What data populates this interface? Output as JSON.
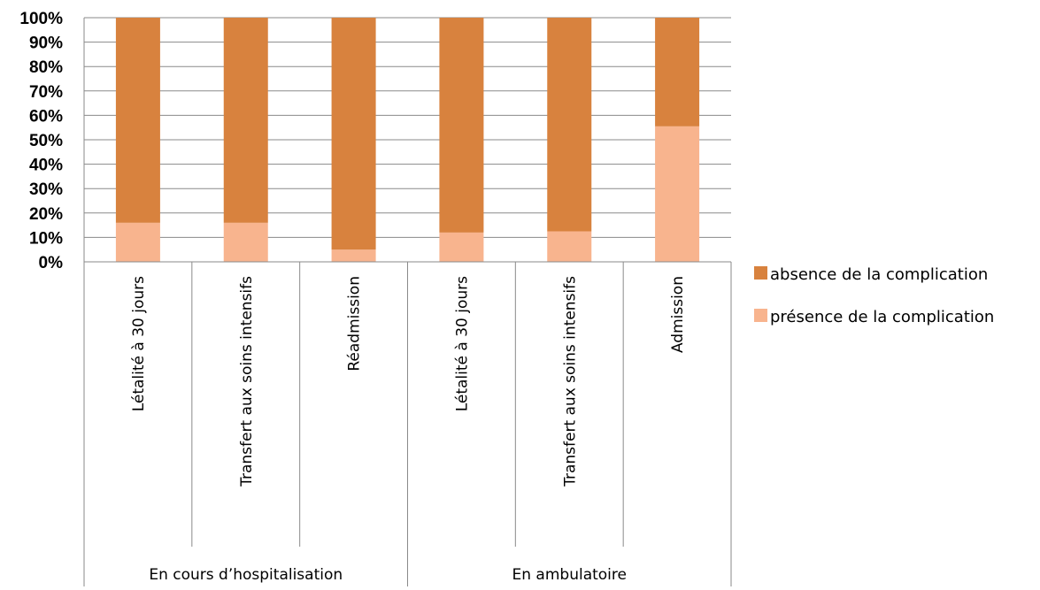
{
  "chart_data": {
    "type": "bar",
    "stacked": true,
    "percent": true,
    "ylim": [
      0,
      100
    ],
    "y_ticks": [
      "0%",
      "10%",
      "20%",
      "30%",
      "40%",
      "50%",
      "60%",
      "70%",
      "80%",
      "90%",
      "100%"
    ],
    "grid": true,
    "legend_position": "right",
    "groups": [
      {
        "label": "En cours d’hospitalisation",
        "categories": [
          "Létalité à 30 jours",
          "Transfert aux soins intensifs",
          "Réadmission"
        ]
      },
      {
        "label": "En ambulatoire",
        "categories": [
          "Létalité à 30 jours",
          "Transfert aux soins intensifs",
          "Admission"
        ]
      }
    ],
    "categories": [
      "Létalité à 30 jours",
      "Transfert aux soins intensifs",
      "Réadmission",
      "Létalité à 30 jours",
      "Transfert aux soins intensifs",
      "Admission"
    ],
    "series": [
      {
        "name": "présence de la complication",
        "color": "#f8b48e",
        "values": [
          16,
          16,
          5,
          12,
          12.5,
          55.5
        ]
      },
      {
        "name": "absence de la complication",
        "color": "#d8823e",
        "values": [
          84,
          84,
          95,
          88,
          87.5,
          44.5
        ]
      }
    ],
    "legend_order": [
      "absence de la complication",
      "présence de la complication"
    ]
  }
}
